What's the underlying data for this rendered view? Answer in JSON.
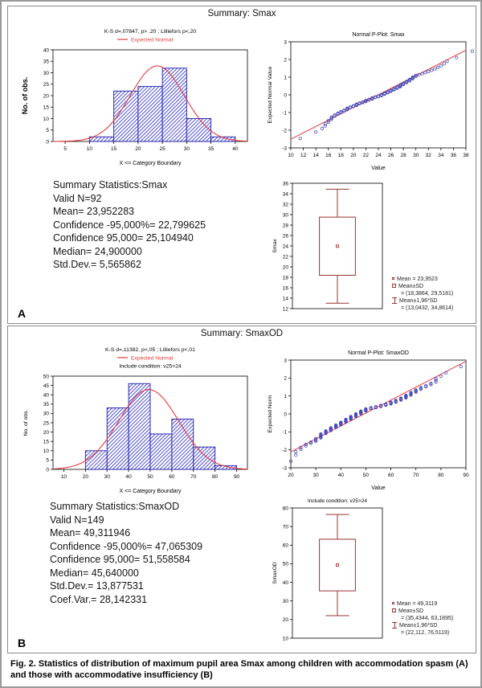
{
  "figure": {
    "caption_label": "Fig. 2.",
    "caption_text": " Statistics of distribution of maximum pupil area Smax among children with accommodation spasm (A) and those with accommodative insufficiency (B)"
  },
  "panel_a": {
    "label": "A",
    "title": "Summary: Smax",
    "summary_lines": [
      "Summary Statistics:Smax",
      "Valid N=92",
      "Mean= 23,952283",
      "Confidence -95,000%= 22,799625",
      "Confidence 95,000= 25,104940",
      "Median= 24,900000",
      "Std.Dev.= 5,565862"
    ]
  },
  "panel_b": {
    "label": "B",
    "title": "Summary: SmaxOD",
    "summary_lines": [
      "Summary Statistics:SmaxOD",
      "Valid N=149",
      "Mean= 49,311946",
      "Confidence -95,000%= 47,065309",
      "Confidence 95,000= 51,558584",
      "Median= 45,640000",
      "Std.Dev.= 13,877531",
      "Coef.Var.= 28,142331"
    ]
  },
  "colors": {
    "bar_outline": "#1c1ca8",
    "hatch": "#3b3bd0",
    "normal_curve": "#e03c3c",
    "pplot_line": "#e03c3c",
    "point": "#4a4ab8",
    "box": "#993333",
    "axis": "#000000"
  },
  "chart_data": [
    {
      "id": "hist-a",
      "type": "bar",
      "title": "K-S d=,07847, p> .20 ; Lilliefors p<,20",
      "legend_label": "Expected Normal",
      "xlabel": "X <= Category Boundary",
      "ylabel": "No. of obs.",
      "ylabel_bold": true,
      "bin_edges": [
        10,
        15,
        20,
        25,
        30,
        35,
        40
      ],
      "counts": [
        2,
        22,
        24,
        32,
        10,
        2
      ],
      "xlim": [
        2.5,
        42.5
      ],
      "ylim": [
        0,
        40
      ],
      "x_ticks": [
        5,
        10,
        15,
        20,
        25,
        30,
        35,
        40
      ],
      "y_ticks": [
        0,
        5,
        10,
        15,
        20,
        25,
        30,
        35,
        40
      ],
      "normal_curve": {
        "mean": 23.952283,
        "sd": 5.565862,
        "n": 92,
        "bin_width": 5
      }
    },
    {
      "id": "pplot-a",
      "type": "scatter",
      "title": "Normal P-Plot: Smax",
      "xlabel": "Value",
      "ylabel": "Expected Normal Value",
      "xlim": [
        10,
        38
      ],
      "ylim": [
        -3,
        3
      ],
      "x_ticks": [
        10,
        12,
        14,
        16,
        18,
        20,
        22,
        24,
        26,
        28,
        30,
        32,
        34,
        36,
        38
      ],
      "y_ticks": [
        -3,
        -2,
        -1,
        0,
        1,
        2,
        3
      ],
      "fit_line": {
        "mean": 23.952283,
        "sd": 5.565862
      },
      "sample_bins": {
        "edges": [
          10,
          15,
          20,
          25,
          30,
          35,
          40
        ],
        "counts": [
          2,
          22,
          24,
          32,
          10,
          2
        ]
      },
      "x_round": 0.5
    },
    {
      "id": "box-a",
      "type": "box",
      "ylabel": "Smax",
      "ylim": [
        12,
        36
      ],
      "y_ticks": [
        12,
        14,
        16,
        18,
        20,
        22,
        24,
        26,
        28,
        30,
        32,
        34,
        36
      ],
      "mean": 23.9523,
      "box": [
        18.3864,
        29.5181
      ],
      "whiskers": [
        13.0432,
        34.8614
      ],
      "legend_lines": [
        "Mean = 23,9523",
        "Mean±SD",
        "= (18,3864, 29,5181)",
        "Mean±1,96*SD",
        "= (13,0432, 34,8614)"
      ]
    },
    {
      "id": "hist-b",
      "type": "bar",
      "title": "K-S d=,11382, p<,05 ; Lilliefors p<,01",
      "legend_label": "Expected Normal",
      "condition": "Include condition: v25>24",
      "xlabel": "X <= Category Boundary",
      "ylabel": "No. of obs.",
      "ylabel_bold": false,
      "bin_edges": [
        20,
        30,
        40,
        50,
        60,
        70,
        80,
        90
      ],
      "counts": [
        10,
        33,
        46,
        19,
        27,
        12,
        2
      ],
      "xlim": [
        5,
        95
      ],
      "ylim": [
        0,
        50
      ],
      "x_ticks": [
        10,
        20,
        30,
        40,
        50,
        60,
        70,
        80,
        90
      ],
      "y_ticks": [
        0,
        5,
        10,
        15,
        20,
        25,
        30,
        35,
        40,
        45,
        50
      ],
      "normal_curve": {
        "mean": 49.311946,
        "sd": 13.877531,
        "n": 149,
        "bin_width": 10
      }
    },
    {
      "id": "pplot-b",
      "type": "scatter",
      "title": "Normal P-Plot: SmaxOD",
      "xlabel": "Value",
      "ylabel": "Expected Norm",
      "xlim": [
        20,
        90
      ],
      "ylim": [
        -3,
        3
      ],
      "x_ticks": [
        20,
        30,
        40,
        50,
        60,
        70,
        80,
        90
      ],
      "y_ticks": [
        -3,
        -2,
        -1,
        0,
        1,
        2,
        3
      ],
      "fit_line": {
        "mean": 49.311946,
        "sd": 13.877531
      },
      "sample_bins": {
        "edges": [
          20,
          30,
          40,
          50,
          60,
          70,
          80,
          90
        ],
        "counts": [
          10,
          33,
          46,
          19,
          27,
          12,
          2
        ]
      },
      "x_round": 2
    },
    {
      "id": "box-b",
      "type": "box",
      "title": "Include condition: v25>24",
      "ylabel": "SmaxOD",
      "ylim": [
        10,
        80
      ],
      "y_ticks": [
        10,
        20,
        30,
        40,
        50,
        60,
        70,
        80
      ],
      "mean": 49.3119,
      "box": [
        35.4344,
        63.1895
      ],
      "whiskers": [
        22.112,
        76.5119
      ],
      "legend_lines": [
        "Mean = 49,3119",
        "Mean±SD",
        "= (35,4344, 63,1895)",
        "Mean±1,96*SD",
        "= (22,112, 76,5119)"
      ]
    }
  ]
}
